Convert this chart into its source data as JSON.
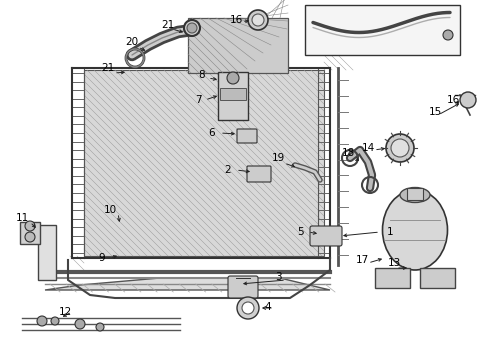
{
  "background_color": "#ffffff",
  "figsize": [
    4.89,
    3.6
  ],
  "dpi": 100,
  "image_data": null
}
